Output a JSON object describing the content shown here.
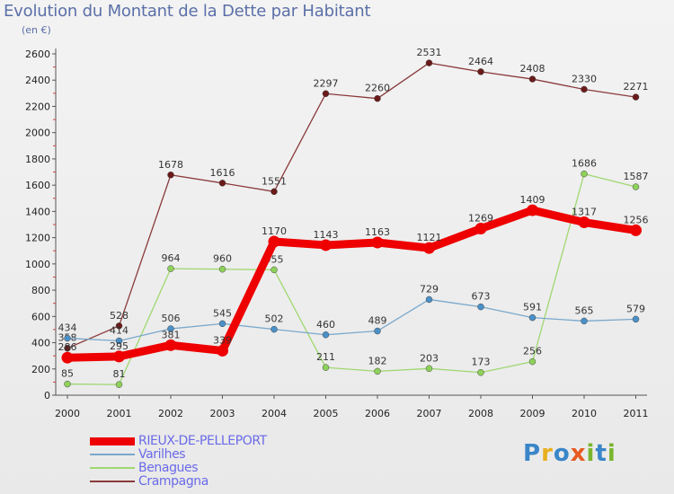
{
  "title": "Evolution du Montant de la Dette par Habitant",
  "unit_label": "(en €)",
  "logo_text": "Proxiti",
  "logo_colors": [
    "#3a86c9",
    "#e8b020",
    "#3a86c9",
    "#e85a20",
    "#7ab52e",
    "#3a86c9",
    "#7ab52e"
  ],
  "chart_data": {
    "type": "line",
    "x": [
      "2000",
      "2001",
      "2002",
      "2003",
      "2004",
      "2005",
      "2006",
      "2007",
      "2008",
      "2009",
      "2010",
      "2011"
    ],
    "ylim": [
      0,
      2600
    ],
    "yticks": [
      0,
      200,
      400,
      600,
      800,
      1000,
      1200,
      1400,
      1600,
      1800,
      2000,
      2200,
      2400,
      2600
    ],
    "grid": false,
    "legend_position": "bottom-left",
    "series": [
      {
        "name": "Crampagna",
        "color": "#6b1a1a",
        "line_color": "#8a3a3a",
        "values": [
          358,
          528,
          1678,
          1616,
          1551,
          2297,
          2260,
          2531,
          2464,
          2408,
          2330,
          2271
        ],
        "labels": [
          "358",
          "528",
          "1678",
          "1616",
          "1551",
          "2297",
          "2260",
          "2531",
          "2464",
          "2408",
          "2330",
          "2271"
        ]
      },
      {
        "name": "Benagues",
        "color": "#8ed15a",
        "line_color": "#9fd870",
        "values": [
          85,
          81,
          964,
          960,
          955,
          211,
          182,
          203,
          173,
          256,
          1686,
          1587
        ],
        "labels": [
          "85",
          "81",
          "964",
          "960",
          "955",
          "211",
          "182",
          "203",
          "173",
          "256",
          "1686",
          "1587"
        ]
      },
      {
        "name": "Varilhes",
        "color": "#4a90c8",
        "line_color": "#7aa8cc",
        "values": [
          434,
          414,
          506,
          545,
          502,
          460,
          489,
          729,
          673,
          591,
          565,
          579
        ],
        "labels": [
          "434",
          "414",
          "506",
          "545",
          "502",
          "460",
          "489",
          "729",
          "673",
          "591",
          "565",
          "579"
        ]
      },
      {
        "name": "RIEUX-DE-PELLEPORT",
        "color": "#ee0000",
        "line_color": "#ee0000",
        "values": [
          286,
          295,
          381,
          339,
          1170,
          1143,
          1163,
          1121,
          1269,
          1409,
          1317,
          1256
        ],
        "labels": [
          "286",
          "295",
          "381",
          "339",
          "1170",
          "1143",
          "1163",
          "1121",
          "1269",
          "1409",
          "1317",
          "1256"
        ]
      }
    ],
    "legend": [
      "RIEUX-DE-PELLEPORT",
      "Varilhes",
      "Benagues",
      "Crampagna"
    ]
  }
}
